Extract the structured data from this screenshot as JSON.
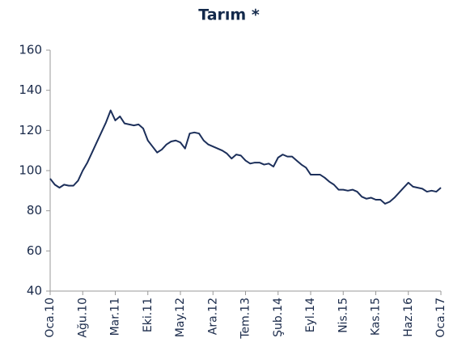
{
  "chart_data": {
    "type": "line",
    "title": "Tarım *",
    "categories": [
      "Oca.10",
      null,
      null,
      null,
      null,
      null,
      null,
      "Ağu.10",
      null,
      null,
      null,
      null,
      null,
      null,
      "Mar.11",
      null,
      null,
      null,
      null,
      null,
      null,
      "Eki.11",
      null,
      null,
      null,
      null,
      null,
      null,
      "May.12",
      null,
      null,
      null,
      null,
      null,
      null,
      "Ara.12",
      null,
      null,
      null,
      null,
      null,
      null,
      "Tem.13",
      null,
      null,
      null,
      null,
      null,
      null,
      "Şub.14",
      null,
      null,
      null,
      null,
      null,
      null,
      "Eyl.14",
      null,
      null,
      null,
      null,
      null,
      null,
      "Nis.15",
      null,
      null,
      null,
      null,
      null,
      null,
      "Kas.15",
      null,
      null,
      null,
      null,
      null,
      null,
      "Haz.16",
      null,
      null,
      null,
      null,
      null,
      null,
      "Oca.17"
    ],
    "values": [
      96,
      93,
      91.5,
      93,
      92.5,
      92.5,
      95,
      100,
      104,
      109,
      114,
      119,
      124,
      130,
      125,
      127,
      123.5,
      123,
      122.5,
      123,
      121,
      115,
      112,
      109,
      110.5,
      113,
      114.5,
      115,
      114,
      111,
      118.5,
      119,
      118.5,
      115,
      113,
      112,
      111,
      110,
      108.5,
      106,
      108,
      107.5,
      105,
      103.5,
      104,
      104,
      103,
      103.5,
      102,
      106.5,
      108,
      107,
      107,
      105,
      103,
      101.5,
      98,
      98,
      98,
      96.5,
      94.5,
      93,
      90.5,
      90.5,
      90,
      90.5,
      89.5,
      87,
      86,
      86.5,
      85.5,
      85.5,
      83.5,
      84.5,
      86.5,
      89,
      91.5,
      94,
      92,
      91.5,
      91,
      89.5,
      90,
      89.5,
      91.5
    ],
    "color": "#1c2f5a",
    "ylim": [
      40,
      160
    ],
    "yticks": [
      40,
      60,
      80,
      100,
      120,
      140,
      160
    ]
  }
}
